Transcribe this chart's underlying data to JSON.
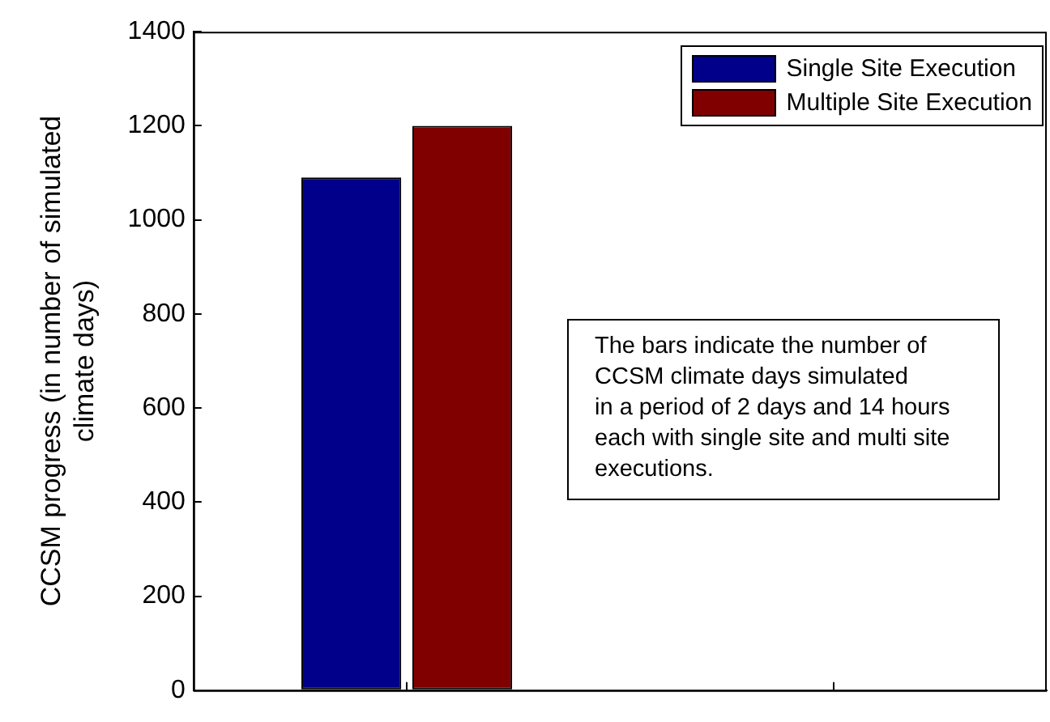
{
  "chart_data": {
    "type": "bar",
    "ylabel": "CCSM progress (in number of simulated\nclimate days)",
    "categories": [
      null,
      null
    ],
    "series": [
      {
        "name": "Single Site Execution",
        "color": "#00008b",
        "values": [
          1090,
          null
        ]
      },
      {
        "name": "Multiple Site Execution",
        "color": "#800000",
        "values": [
          1200,
          null
        ]
      }
    ],
    "ylim": [
      0,
      1400
    ],
    "yticks": [
      0,
      200,
      400,
      600,
      800,
      1000,
      1200,
      1400
    ],
    "grid": false,
    "legend": "top right",
    "annotations": [
      "The bars indicate the number of\nCCSM climate days simulated\nin a period of 2 days and 14 hours\neach with single site and multi site\nexecutions."
    ]
  }
}
